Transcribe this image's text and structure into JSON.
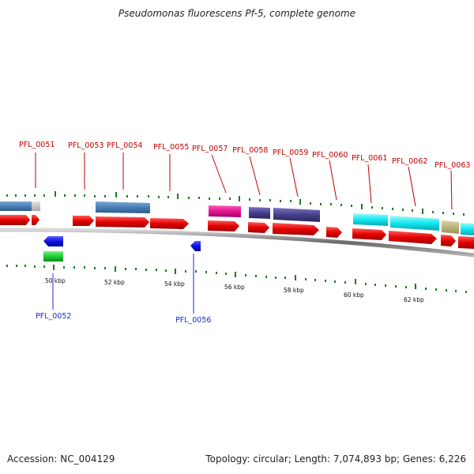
{
  "header": {
    "title": "Pseudomonas fluorescens Pf-5, complete genome"
  },
  "footer": {
    "accession": "Accession: NC_004129",
    "summary": "Topology: circular; Length: 7,074,893 bp; Genes: 6,226"
  },
  "genes_above": [
    "PFL_0051",
    "PFL_0053",
    "PFL_0054",
    "PFL_0055",
    "PFL_0057",
    "PFL_0058",
    "PFL_0059",
    "PFL_0060",
    "PFL_0061",
    "PFL_0062",
    "PFL_0063"
  ],
  "genes_below": [
    "PFL_0052",
    "PFL_0056"
  ],
  "scale_ticks": [
    "50 kbp",
    "52 kbp",
    "54 kbp",
    "56 kbp",
    "58 kbp",
    "60 kbp",
    "62 kbp"
  ],
  "colors": {
    "forward_cds": "#e50000",
    "reverse_cds": "#1010e0",
    "backbone": "#7a7a7a",
    "tick": "#1f7a1f",
    "label_forward": "#c00000",
    "label_reverse": "#1c2bd0",
    "feature_steelblue": "#4a7fb5",
    "feature_gray": "#c8c8c8",
    "feature_magenta": "#e0168e",
    "feature_purple": "#463f8a",
    "feature_cyan": "#12e6ee",
    "feature_khaki": "#bdb378",
    "feature_green": "#22cc33"
  }
}
